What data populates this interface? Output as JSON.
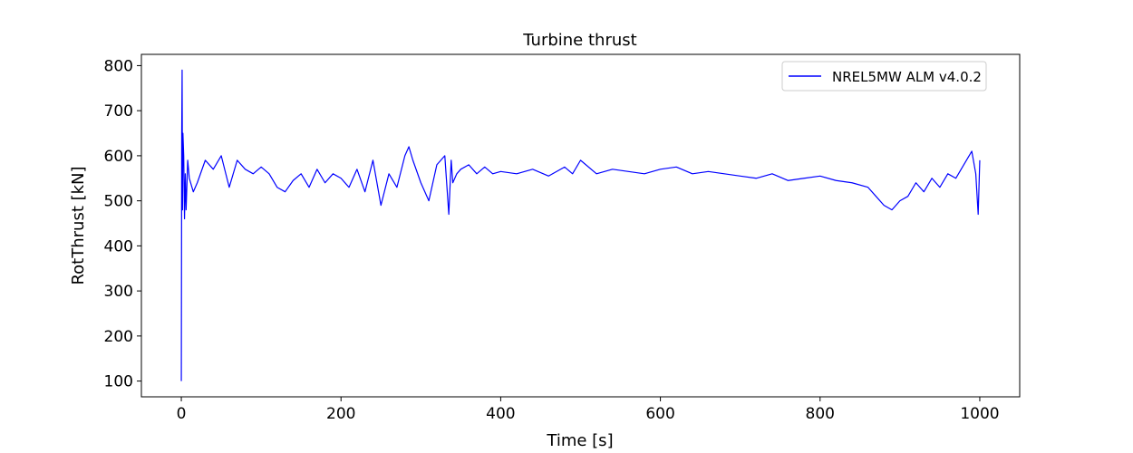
{
  "chart_data": {
    "type": "line",
    "title": "Turbine thrust",
    "xlabel": "Time [s]",
    "ylabel": "RotThrust [kN]",
    "xlim": [
      -50,
      1050
    ],
    "ylim": [
      65,
      825
    ],
    "xticks": [
      0,
      200,
      400,
      600,
      800,
      1000
    ],
    "yticks": [
      100,
      200,
      300,
      400,
      500,
      600,
      700,
      800
    ],
    "grid": false,
    "legend_position": "top-right",
    "series": [
      {
        "name": "NREL5MW ALM v4.0.2",
        "color": "#0000ff",
        "x": [
          0,
          0.5,
          1,
          1.5,
          2,
          3,
          4,
          5,
          6,
          8,
          10,
          15,
          20,
          30,
          40,
          50,
          60,
          65,
          70,
          80,
          90,
          100,
          110,
          120,
          130,
          140,
          150,
          160,
          170,
          180,
          190,
          200,
          210,
          220,
          230,
          240,
          250,
          260,
          270,
          280,
          285,
          290,
          300,
          310,
          320,
          330,
          335,
          338,
          340,
          345,
          350,
          360,
          370,
          380,
          390,
          400,
          420,
          440,
          460,
          480,
          490,
          500,
          520,
          540,
          560,
          580,
          600,
          620,
          640,
          660,
          680,
          700,
          720,
          740,
          760,
          780,
          800,
          820,
          840,
          860,
          870,
          880,
          890,
          900,
          910,
          920,
          930,
          940,
          950,
          960,
          970,
          980,
          990,
          995,
          998,
          1000
        ],
        "y": [
          100,
          650,
          790,
          480,
          650,
          600,
          460,
          560,
          480,
          590,
          550,
          520,
          540,
          590,
          570,
          600,
          530,
          560,
          590,
          570,
          560,
          575,
          560,
          530,
          520,
          545,
          560,
          530,
          570,
          540,
          560,
          550,
          530,
          570,
          520,
          590,
          490,
          560,
          530,
          600,
          620,
          590,
          540,
          500,
          580,
          600,
          470,
          590,
          540,
          560,
          570,
          580,
          560,
          575,
          560,
          565,
          560,
          570,
          555,
          575,
          560,
          590,
          560,
          570,
          565,
          560,
          570,
          575,
          560,
          565,
          560,
          555,
          550,
          560,
          545,
          550,
          555,
          545,
          540,
          530,
          510,
          490,
          480,
          500,
          510,
          540,
          520,
          550,
          530,
          560,
          550,
          580,
          610,
          560,
          470,
          590
        ]
      }
    ]
  }
}
